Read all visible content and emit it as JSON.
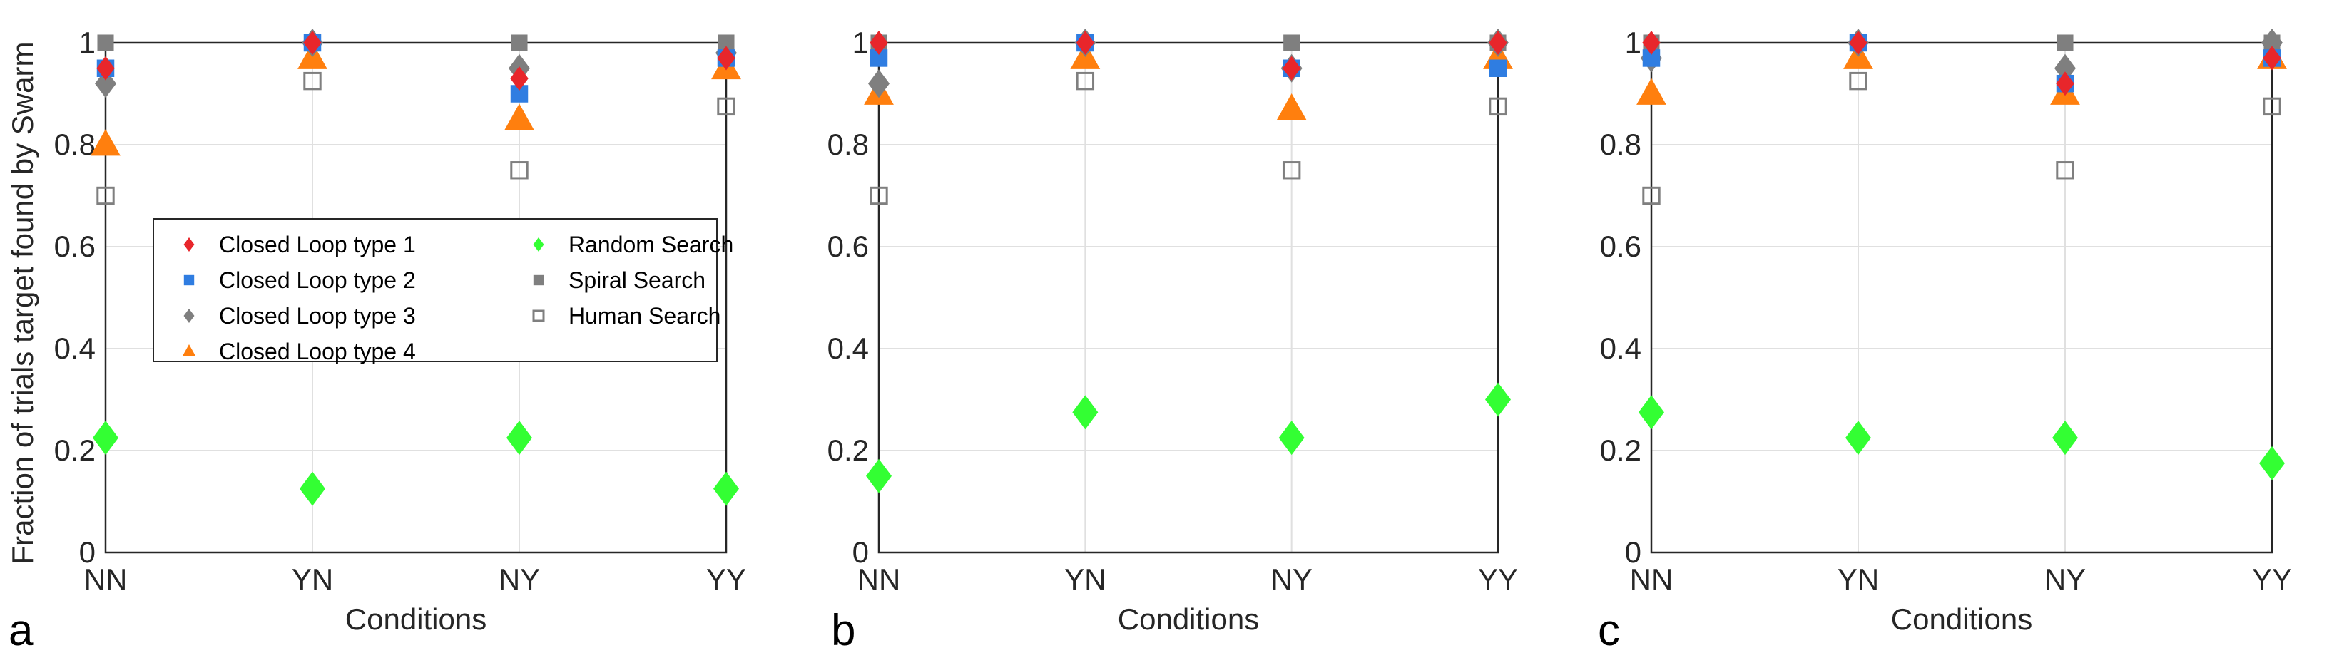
{
  "figure": {
    "ylabel": "Fraction of trials target found by Swarm",
    "xlabel": "Conditions"
  },
  "legend": [
    {
      "name": "Closed Loop type 1",
      "color": "#e8262b",
      "marker": "diamond"
    },
    {
      "name": "Closed Loop type 2",
      "color": "#2f7de1",
      "marker": "square"
    },
    {
      "name": "Closed Loop type 3",
      "color": "#7f7f7f",
      "marker": "diamond"
    },
    {
      "name": "Closed Loop type 4",
      "color": "#ff7f0e",
      "marker": "triangle"
    },
    {
      "name": "Random Search",
      "color": "#33ff33",
      "marker": "diamond"
    },
    {
      "name": "Spiral Search",
      "color": "#7f7f7f",
      "marker": "square"
    },
    {
      "name": "Human Search",
      "color": "#7f7f7f",
      "marker": "open-square"
    }
  ],
  "chart_data": [
    {
      "type": "scatter",
      "panel": "a",
      "categories": [
        "NN",
        "YN",
        "NY",
        "YY"
      ],
      "xlabel": "Conditions",
      "ylabel": "Fraction of trials target found by Swarm",
      "ylim": [
        0,
        1
      ],
      "yticks": [
        0,
        0.2,
        0.4,
        0.6,
        0.8,
        1
      ],
      "grid": true,
      "legend_position": "center-inside",
      "series": [
        {
          "name": "Closed Loop type 1",
          "values": [
            0.95,
            1.0,
            0.93,
            0.97
          ]
        },
        {
          "name": "Closed Loop type 2",
          "values": [
            0.95,
            1.0,
            0.9,
            0.97
          ]
        },
        {
          "name": "Closed Loop type 3",
          "values": [
            0.92,
            1.0,
            0.95,
            0.98
          ]
        },
        {
          "name": "Closed Loop type 4",
          "values": [
            0.8,
            0.97,
            0.85,
            0.95
          ]
        },
        {
          "name": "Random Search",
          "values": [
            0.225,
            0.125,
            0.225,
            0.125
          ]
        },
        {
          "name": "Spiral Search",
          "values": [
            1.0,
            1.0,
            1.0,
            1.0
          ]
        },
        {
          "name": "Human Search",
          "values": [
            0.7,
            0.925,
            0.75,
            0.875
          ]
        }
      ]
    },
    {
      "type": "scatter",
      "panel": "b",
      "categories": [
        "NN",
        "YN",
        "NY",
        "YY"
      ],
      "xlabel": "Conditions",
      "ylim": [
        0,
        1
      ],
      "yticks": [
        0,
        0.2,
        0.4,
        0.6,
        0.8,
        1
      ],
      "grid": true,
      "series": [
        {
          "name": "Closed Loop type 1",
          "values": [
            1.0,
            1.0,
            0.95,
            1.0
          ]
        },
        {
          "name": "Closed Loop type 2",
          "values": [
            0.97,
            1.0,
            0.95,
            0.95
          ]
        },
        {
          "name": "Closed Loop type 3",
          "values": [
            0.92,
            1.0,
            0.95,
            1.0
          ]
        },
        {
          "name": "Closed Loop type 4",
          "values": [
            0.9,
            0.97,
            0.87,
            0.97
          ]
        },
        {
          "name": "Random Search",
          "values": [
            0.15,
            0.275,
            0.225,
            0.3
          ]
        },
        {
          "name": "Spiral Search",
          "values": [
            1.0,
            1.0,
            1.0,
            1.0
          ]
        },
        {
          "name": "Human Search",
          "values": [
            0.7,
            0.925,
            0.75,
            0.875
          ]
        }
      ]
    },
    {
      "type": "scatter",
      "panel": "c",
      "categories": [
        "NN",
        "YN",
        "NY",
        "YY"
      ],
      "xlabel": "Conditions",
      "ylim": [
        0,
        1
      ],
      "yticks": [
        0,
        0.2,
        0.4,
        0.6,
        0.8,
        1
      ],
      "grid": true,
      "series": [
        {
          "name": "Closed Loop type 1",
          "values": [
            1.0,
            1.0,
            0.92,
            0.97
          ]
        },
        {
          "name": "Closed Loop type 2",
          "values": [
            0.97,
            1.0,
            0.92,
            0.97
          ]
        },
        {
          "name": "Closed Loop type 3",
          "values": [
            0.97,
            1.0,
            0.95,
            1.0
          ]
        },
        {
          "name": "Closed Loop type 4",
          "values": [
            0.9,
            0.97,
            0.9,
            0.97
          ]
        },
        {
          "name": "Random Search",
          "values": [
            0.275,
            0.225,
            0.225,
            0.175
          ]
        },
        {
          "name": "Spiral Search",
          "values": [
            1.0,
            1.0,
            1.0,
            1.0
          ]
        },
        {
          "name": "Human Search",
          "values": [
            0.7,
            0.925,
            0.75,
            0.875
          ]
        }
      ]
    }
  ]
}
